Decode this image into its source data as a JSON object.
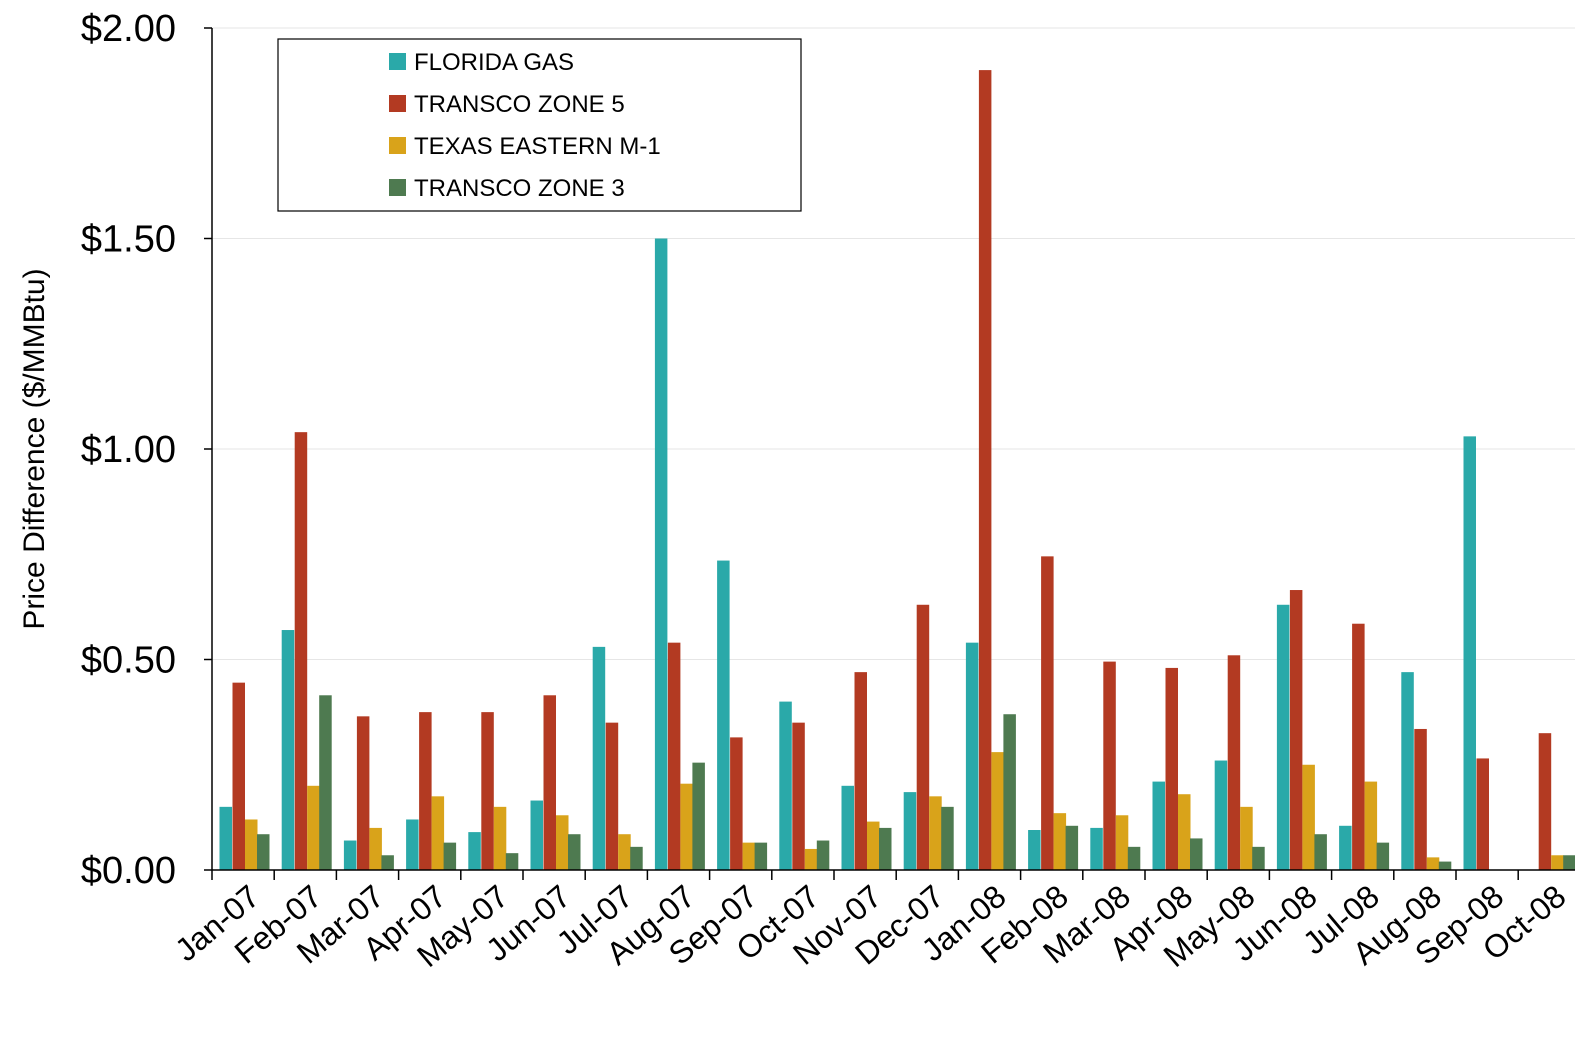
{
  "chart_data": {
    "type": "bar",
    "ylabel": "Price Difference  ($/MMBtu)",
    "xlabel": "",
    "ylim": [
      0,
      2
    ],
    "yticks": [
      "$0.00",
      "$0.50",
      "$1.00",
      "$1.50",
      "$2.00"
    ],
    "ytick_values": [
      0,
      0.5,
      1.0,
      1.5,
      2.0
    ],
    "grid": true,
    "legend_position": "top-left",
    "categories": [
      "Jan-07",
      "Feb-07",
      "Mar-07",
      "Apr-07",
      "May-07",
      "Jun-07",
      "Jul-07",
      "Aug-07",
      "Sep-07",
      "Oct-07",
      "Nov-07",
      "Dec-07",
      "Jan-08",
      "Feb-08",
      "Mar-08",
      "Apr-08",
      "May-08",
      "Jun-08",
      "Jul-08",
      "Aug-08",
      "Sep-08",
      "Oct-08"
    ],
    "series": [
      {
        "name": "FLORIDA GAS",
        "color": "#2aa9a9",
        "values": [
          0.15,
          0.57,
          0.07,
          0.12,
          0.09,
          0.165,
          0.53,
          1.5,
          0.735,
          0.4,
          0.2,
          0.185,
          0.54,
          0.095,
          0.1,
          0.21,
          0.26,
          0.63,
          0.105,
          0.47,
          1.03,
          0.0
        ]
      },
      {
        "name": "TRANSCO ZONE 5",
        "color": "#b33a22",
        "values": [
          0.445,
          1.04,
          0.365,
          0.375,
          0.375,
          0.415,
          0.35,
          0.54,
          0.315,
          0.35,
          0.47,
          0.63,
          1.9,
          0.745,
          0.495,
          0.48,
          0.51,
          0.665,
          0.585,
          0.335,
          0.265,
          0.325
        ]
      },
      {
        "name": "TEXAS EASTERN M-1",
        "color": "#d9a31a",
        "values": [
          0.12,
          0.2,
          0.1,
          0.175,
          0.15,
          0.13,
          0.085,
          0.205,
          0.065,
          0.05,
          0.115,
          0.175,
          0.28,
          0.135,
          0.13,
          0.18,
          0.15,
          0.25,
          0.21,
          0.03,
          0.0,
          0.035
        ]
      },
      {
        "name": "TRANSCO ZONE 3",
        "color": "#4e7a50",
        "values": [
          0.085,
          0.415,
          0.035,
          0.065,
          0.04,
          0.085,
          0.055,
          0.255,
          0.065,
          0.07,
          0.1,
          0.15,
          0.37,
          0.105,
          0.055,
          0.075,
          0.055,
          0.085,
          0.065,
          0.02,
          0.0,
          0.035
        ]
      }
    ]
  }
}
